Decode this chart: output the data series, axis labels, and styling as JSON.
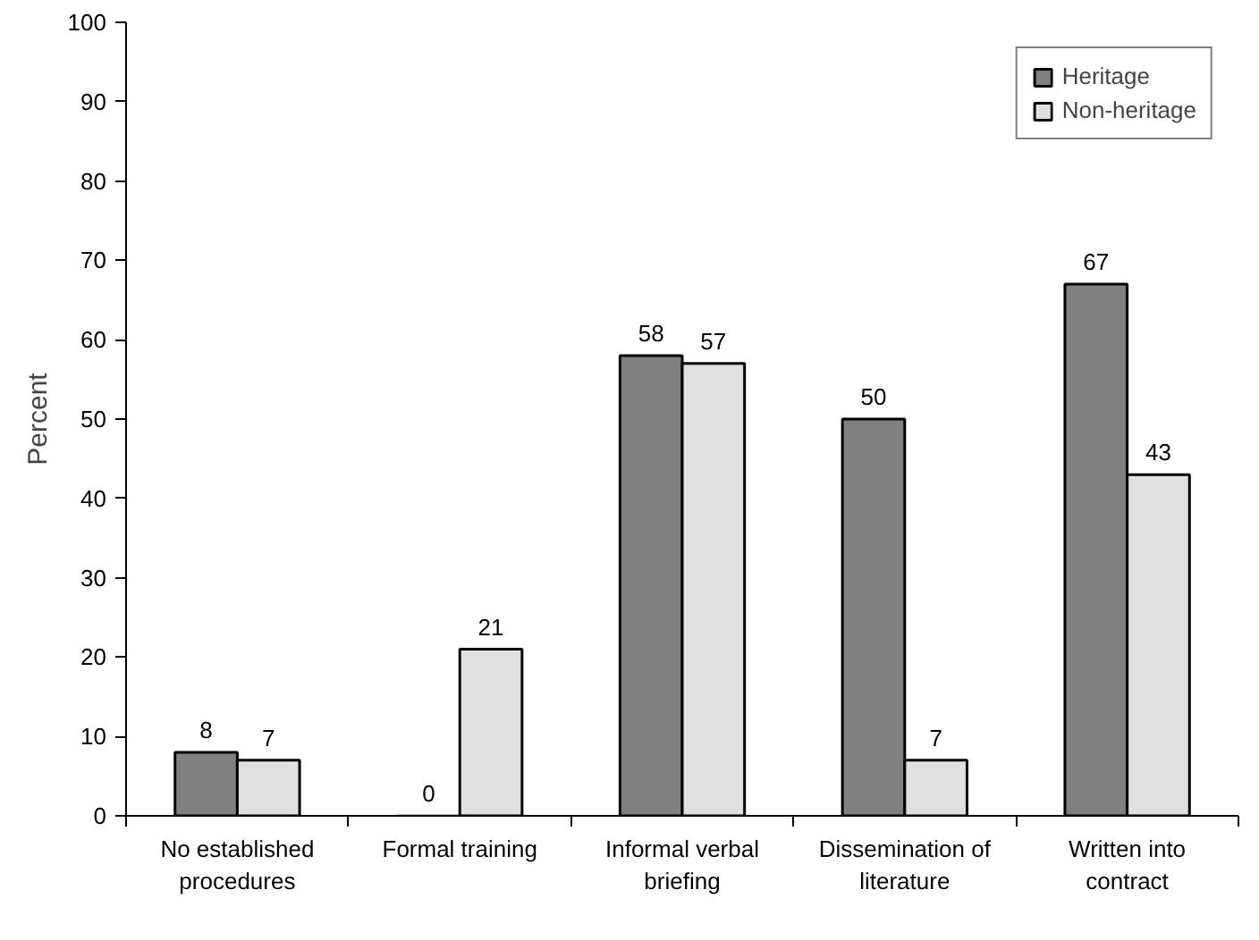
{
  "chart_data": {
    "type": "bar",
    "ylabel": "Percent",
    "categories": [
      "No established\nprocedures",
      "Formal training",
      "Informal verbal\nbriefing",
      "Dissemination of\nliterature",
      "Written into\ncontract"
    ],
    "series": [
      {
        "name": "Heritage",
        "color": "#808080",
        "values": [
          8,
          0,
          58,
          50,
          67
        ]
      },
      {
        "name": "Non-heritage",
        "color": "#e0e0e0",
        "values": [
          7,
          21,
          57,
          7,
          43
        ]
      }
    ],
    "ylim": [
      0,
      100
    ],
    "yticks": [
      0,
      10,
      20,
      30,
      40,
      50,
      60,
      70,
      80,
      90,
      100
    ],
    "grid": false,
    "legend": "top right",
    "data_labels": true
  }
}
